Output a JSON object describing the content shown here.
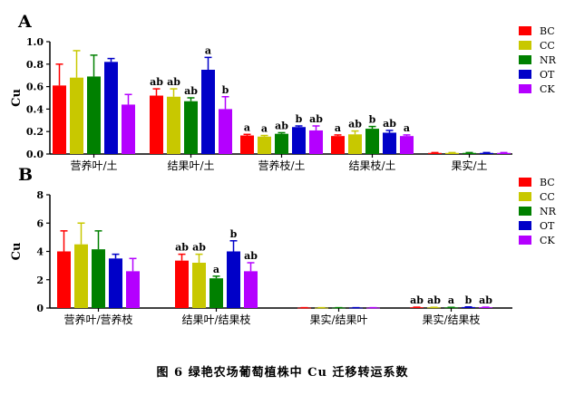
{
  "caption": "图 6 绿艳农场葡萄植株中 Cu 迁移转运系数",
  "legend_color_keys": [
    "BC",
    "CC",
    "NR",
    "OT",
    "CK"
  ],
  "colors": {
    "BC": "#ff0000",
    "CC": "#c8c800",
    "NR": "#008000",
    "OT": "#0000c8",
    "CK": "#b400ff"
  },
  "chart_data": [
    {
      "type": "bar",
      "panel_label": "A",
      "ylabel": "Cu",
      "ylim": [
        0,
        1.0
      ],
      "yticks": [
        "0.0",
        "0.2",
        "0.4",
        "0.6",
        "0.8",
        "1.0"
      ],
      "yticks_values": [
        0,
        0.2,
        0.4,
        0.6,
        0.8,
        1.0
      ],
      "categories": [
        "营养叶/土",
        "结果叶/土",
        "营养枝/土",
        "结果枝/土",
        "果实/土"
      ],
      "legend": [
        "BC",
        "CC",
        "NR",
        "OT",
        "CK"
      ],
      "series": [
        {
          "name": "BC",
          "values": [
            0.61,
            0.52,
            0.165,
            0.16,
            0.01
          ],
          "errors": [
            0.19,
            0.06,
            0.01,
            0.01,
            0.003
          ]
        },
        {
          "name": "CC",
          "values": [
            0.68,
            0.51,
            0.155,
            0.175,
            0.01
          ],
          "errors": [
            0.24,
            0.07,
            0.01,
            0.03,
            0.003
          ]
        },
        {
          "name": "NR",
          "values": [
            0.69,
            0.47,
            0.18,
            0.225,
            0.01
          ],
          "errors": [
            0.19,
            0.03,
            0.01,
            0.02,
            0.003
          ]
        },
        {
          "name": "OT",
          "values": [
            0.82,
            0.75,
            0.24,
            0.19,
            0.01
          ],
          "errors": [
            0.03,
            0.11,
            0.01,
            0.02,
            0.003
          ]
        },
        {
          "name": "CK",
          "values": [
            0.44,
            0.4,
            0.21,
            0.16,
            0.01
          ],
          "errors": [
            0.09,
            0.11,
            0.04,
            0.01,
            0.003
          ]
        }
      ],
      "annotations": [
        [
          "",
          "",
          "",
          "",
          ""
        ],
        [
          "ab",
          "ab",
          "ab",
          "a",
          "b"
        ],
        [
          "a",
          "a",
          "ab",
          "b",
          "ab"
        ],
        [
          "a",
          "ab",
          "b",
          "ab",
          "a"
        ],
        [
          "",
          "",
          "",
          "",
          ""
        ]
      ]
    },
    {
      "type": "bar",
      "panel_label": "B",
      "ylabel": "Cu",
      "ylim": [
        0,
        8
      ],
      "yticks": [
        "0",
        "2",
        "4",
        "6",
        "8"
      ],
      "yticks_values": [
        0,
        2,
        4,
        6,
        8
      ],
      "categories": [
        "营养叶/营养枝",
        "结果叶/结果枝",
        "果实/结果叶",
        "果实/结果枝"
      ],
      "legend": [
        "BC",
        "CC",
        "NR",
        "OT",
        "CK"
      ],
      "series": [
        {
          "name": "BC",
          "values": [
            4.0,
            3.35,
            0.02,
            0.05
          ],
          "errors": [
            1.45,
            0.45,
            0.005,
            0.01
          ]
        },
        {
          "name": "CC",
          "values": [
            4.5,
            3.2,
            0.02,
            0.04
          ],
          "errors": [
            1.5,
            0.6,
            0.005,
            0.01
          ]
        },
        {
          "name": "NR",
          "values": [
            4.15,
            2.1,
            0.02,
            0.04
          ],
          "errors": [
            1.3,
            0.15,
            0.005,
            0.01
          ]
        },
        {
          "name": "OT",
          "values": [
            3.5,
            4.0,
            0.02,
            0.07
          ],
          "errors": [
            0.3,
            0.75,
            0.005,
            0.01
          ]
        },
        {
          "name": "CK",
          "values": [
            2.6,
            2.6,
            0.02,
            0.05
          ],
          "errors": [
            0.9,
            0.6,
            0.005,
            0.01
          ]
        }
      ],
      "annotations": [
        [
          "",
          "",
          "",
          "",
          ""
        ],
        [
          "ab",
          "ab",
          "a",
          "b",
          "ab"
        ],
        [
          "",
          "",
          "",
          "",
          ""
        ],
        [
          "ab",
          "ab",
          "a",
          "b",
          "ab"
        ]
      ]
    }
  ]
}
